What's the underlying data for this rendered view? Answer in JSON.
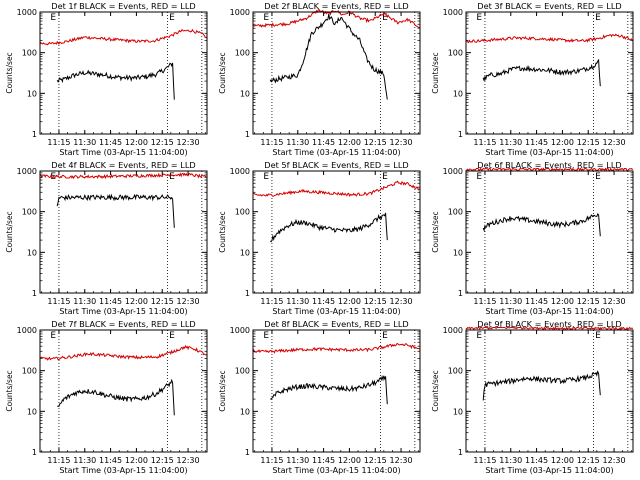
{
  "colors": {
    "events": "#000000",
    "lld": "#d40000",
    "axes": "#000000",
    "background": "#ffffff"
  },
  "shared": {
    "xlabel": "Start Time (03-Apr-15 11:04:00)",
    "ylabel": "Counts/sec",
    "x_tick_labels": [
      "11:15",
      "11:30",
      "11:45",
      "12:00",
      "12:15",
      "12:30"
    ],
    "y_tick_labels": [
      "1",
      "10",
      "100",
      "1000"
    ],
    "marker_labels": [
      "E",
      "E"
    ]
  },
  "chart_data": [
    {
      "type": "line",
      "title": "Det 1f BLACK = Events, RED = LLD",
      "xlim": [
        "11:04",
        "12:41"
      ],
      "ylim": [
        1,
        1000
      ],
      "yscale": "log",
      "marker_times": [
        "11:10",
        "12:19"
      ],
      "dotted_times": [
        "11:15",
        "12:18",
        "12:38"
      ],
      "series": [
        {
          "name": "Events",
          "color": "#000000",
          "start": "11:14",
          "end": "12:22",
          "x": [
            "11:14",
            "11:18",
            "11:24",
            "11:30",
            "11:36",
            "11:42",
            "11:48",
            "11:54",
            "12:00",
            "12:06",
            "12:12",
            "12:17",
            "12:21",
            "12:22"
          ],
          "y": [
            20,
            22,
            28,
            32,
            30,
            28,
            25,
            24,
            24,
            26,
            30,
            40,
            55,
            7
          ]
        },
        {
          "name": "LLD",
          "color": "#d40000",
          "start": "11:04",
          "end": "12:41",
          "x": [
            "11:04",
            "11:10",
            "11:20",
            "11:30",
            "11:40",
            "11:50",
            "12:00",
            "12:10",
            "12:20",
            "12:26",
            "12:32",
            "12:38",
            "12:41"
          ],
          "y": [
            170,
            165,
            190,
            240,
            220,
            205,
            190,
            195,
            260,
            340,
            350,
            290,
            230
          ]
        }
      ]
    },
    {
      "type": "line",
      "title": "Det 2f BLACK = Events, RED = LLD",
      "xlim": [
        "11:04",
        "12:41"
      ],
      "ylim": [
        1,
        1000
      ],
      "yscale": "log",
      "marker_times": [
        "11:10",
        "12:19"
      ],
      "dotted_times": [
        "11:15",
        "12:18",
        "12:38"
      ],
      "series": [
        {
          "name": "Events",
          "color": "#000000",
          "start": "11:14",
          "end": "12:22",
          "x": [
            "11:14",
            "11:18",
            "11:24",
            "11:30",
            "11:33",
            "11:38",
            "11:44",
            "11:48",
            "11:52",
            "11:55",
            "11:58",
            "12:02",
            "12:06",
            "12:10",
            "12:14",
            "12:20",
            "12:22"
          ],
          "y": [
            20,
            22,
            25,
            28,
            60,
            300,
            500,
            800,
            500,
            750,
            500,
            300,
            200,
            70,
            40,
            30,
            7
          ]
        },
        {
          "name": "LLD",
          "color": "#d40000",
          "start": "11:04",
          "end": "12:41",
          "x": [
            "11:04",
            "11:15",
            "11:25",
            "11:35",
            "11:42",
            "11:48",
            "11:52",
            "11:56",
            "12:00",
            "12:06",
            "12:12",
            "12:20",
            "12:28",
            "12:34",
            "12:41"
          ],
          "y": [
            450,
            480,
            520,
            700,
            1100,
            900,
            1100,
            850,
            1000,
            700,
            600,
            900,
            550,
            650,
            400
          ]
        }
      ]
    },
    {
      "type": "line",
      "title": "Det 3f BLACK = Events, RED = LLD",
      "xlim": [
        "11:04",
        "12:41"
      ],
      "ylim": [
        1,
        1000
      ],
      "yscale": "log",
      "marker_times": [
        "11:10",
        "12:19"
      ],
      "dotted_times": [
        "11:15",
        "12:18",
        "12:38"
      ],
      "series": [
        {
          "name": "Events",
          "color": "#000000",
          "start": "11:14",
          "end": "12:22",
          "x": [
            "11:14",
            "11:18",
            "11:24",
            "11:30",
            "11:36",
            "11:42",
            "11:48",
            "11:54",
            "12:00",
            "12:06",
            "12:12",
            "12:17",
            "12:21",
            "12:22"
          ],
          "y": [
            22,
            28,
            30,
            38,
            42,
            40,
            38,
            36,
            33,
            34,
            38,
            45,
            60,
            15
          ]
        },
        {
          "name": "LLD",
          "color": "#d40000",
          "start": "11:04",
          "end": "12:41",
          "x": [
            "11:04",
            "11:12",
            "11:22",
            "11:32",
            "11:42",
            "11:52",
            "12:02",
            "12:12",
            "12:20",
            "12:28",
            "12:34",
            "12:41"
          ],
          "y": [
            190,
            195,
            210,
            230,
            225,
            215,
            200,
            195,
            220,
            270,
            260,
            200
          ]
        }
      ]
    },
    {
      "type": "line",
      "title": "Det 4f BLACK = Events, RED = LLD",
      "xlim": [
        "11:04",
        "12:41"
      ],
      "ylim": [
        1,
        1000
      ],
      "yscale": "log",
      "marker_times": [
        "11:10",
        "12:19"
      ],
      "dotted_times": [
        "11:15",
        "12:18",
        "12:38"
      ],
      "series": [
        {
          "name": "Events",
          "color": "#000000",
          "start": "11:14",
          "end": "12:22",
          "x": [
            "11:14",
            "11:15",
            "11:30",
            "11:45",
            "12:00",
            "12:15",
            "12:21",
            "12:22"
          ],
          "y": [
            130,
            220,
            225,
            225,
            225,
            225,
            225,
            40
          ]
        },
        {
          "name": "LLD",
          "color": "#d40000",
          "start": "11:04",
          "end": "12:41",
          "x": [
            "11:04",
            "11:20",
            "11:40",
            "12:00",
            "12:20",
            "12:30",
            "12:41"
          ],
          "y": [
            750,
            720,
            730,
            760,
            800,
            820,
            700
          ]
        }
      ]
    },
    {
      "type": "line",
      "title": "Det 5f BLACK = Events, RED = LLD",
      "xlim": [
        "11:04",
        "12:41"
      ],
      "ylim": [
        1,
        1000
      ],
      "yscale": "log",
      "marker_times": [
        "11:10",
        "12:19"
      ],
      "dotted_times": [
        "11:15",
        "12:18",
        "12:38"
      ],
      "series": [
        {
          "name": "Events",
          "color": "#000000",
          "start": "11:14",
          "end": "12:22",
          "x": [
            "11:14",
            "11:18",
            "11:24",
            "11:30",
            "11:36",
            "11:42",
            "11:48",
            "11:54",
            "12:00",
            "12:06",
            "12:12",
            "12:17",
            "12:21",
            "12:22"
          ],
          "y": [
            18,
            30,
            45,
            55,
            52,
            42,
            38,
            35,
            34,
            38,
            50,
            70,
            85,
            20
          ]
        },
        {
          "name": "LLD",
          "color": "#d40000",
          "start": "11:04",
          "end": "12:41",
          "x": [
            "11:04",
            "11:12",
            "11:22",
            "11:32",
            "11:42",
            "11:52",
            "12:02",
            "12:12",
            "12:20",
            "12:28",
            "12:34",
            "12:41"
          ],
          "y": [
            260,
            250,
            280,
            320,
            300,
            280,
            260,
            280,
            380,
            520,
            480,
            350
          ]
        }
      ]
    },
    {
      "type": "line",
      "title": "Det 6f BLACK = Events, RED = LLD",
      "xlim": [
        "11:04",
        "12:41"
      ],
      "ylim": [
        1,
        1000
      ],
      "yscale": "log",
      "marker_times": [
        "11:10",
        "12:19"
      ],
      "dotted_times": [
        "11:15",
        "12:18",
        "12:38"
      ],
      "series": [
        {
          "name": "Events",
          "color": "#000000",
          "start": "11:14",
          "end": "12:22",
          "x": [
            "11:14",
            "11:18",
            "11:24",
            "11:30",
            "11:36",
            "11:42",
            "11:48",
            "11:54",
            "12:00",
            "12:06",
            "12:12",
            "12:17",
            "12:21",
            "12:22"
          ],
          "y": [
            38,
            50,
            60,
            70,
            65,
            60,
            55,
            50,
            48,
            52,
            60,
            75,
            90,
            25
          ]
        },
        {
          "name": "LLD",
          "color": "#d40000",
          "start": "11:04",
          "end": "12:41",
          "x": [
            "11:04",
            "11:20",
            "11:40",
            "12:00",
            "12:20",
            "12:41"
          ],
          "y": [
            1100,
            1100,
            1100,
            1100,
            1100,
            1100
          ]
        }
      ]
    },
    {
      "type": "line",
      "title": "Det 7f BLACK = Events, RED = LLD",
      "xlim": [
        "11:04",
        "12:41"
      ],
      "ylim": [
        1,
        1000
      ],
      "yscale": "log",
      "marker_times": [
        "11:10",
        "12:19"
      ],
      "dotted_times": [
        "11:15",
        "12:18",
        "12:38"
      ],
      "series": [
        {
          "name": "Events",
          "color": "#000000",
          "start": "11:14",
          "end": "12:22",
          "x": [
            "11:14",
            "11:18",
            "11:24",
            "11:30",
            "11:36",
            "11:42",
            "11:48",
            "11:54",
            "12:00",
            "12:06",
            "12:12",
            "12:17",
            "12:21",
            "12:22"
          ],
          "y": [
            12,
            20,
            28,
            32,
            30,
            25,
            22,
            20,
            20,
            22,
            28,
            40,
            55,
            8
          ]
        },
        {
          "name": "LLD",
          "color": "#d40000",
          "start": "11:04",
          "end": "12:41",
          "x": [
            "11:04",
            "11:12",
            "11:22",
            "11:32",
            "11:42",
            "11:52",
            "12:02",
            "12:12",
            "12:20",
            "12:28",
            "12:34",
            "12:41"
          ],
          "y": [
            200,
            195,
            220,
            260,
            240,
            220,
            210,
            220,
            280,
            380,
            340,
            240
          ]
        }
      ]
    },
    {
      "type": "line",
      "title": "Det 8f BLACK = Events, RED = LLD",
      "xlim": [
        "11:04",
        "12:41"
      ],
      "ylim": [
        1,
        1000
      ],
      "yscale": "log",
      "marker_times": [
        "11:10",
        "12:19"
      ],
      "dotted_times": [
        "11:15",
        "12:18",
        "12:38"
      ],
      "series": [
        {
          "name": "Events",
          "color": "#000000",
          "start": "11:14",
          "end": "12:22",
          "x": [
            "11:14",
            "11:18",
            "11:24",
            "11:30",
            "11:36",
            "11:42",
            "11:48",
            "11:54",
            "12:00",
            "12:06",
            "12:12",
            "12:17",
            "12:21",
            "12:22"
          ],
          "y": [
            18,
            28,
            35,
            40,
            42,
            40,
            38,
            36,
            35,
            38,
            45,
            55,
            70,
            15
          ]
        },
        {
          "name": "LLD",
          "color": "#d40000",
          "start": "11:04",
          "end": "12:41",
          "x": [
            "11:04",
            "11:12",
            "11:22",
            "11:32",
            "11:42",
            "11:52",
            "12:02",
            "12:12",
            "12:20",
            "12:28",
            "12:34",
            "12:41"
          ],
          "y": [
            300,
            290,
            310,
            330,
            340,
            330,
            320,
            330,
            380,
            450,
            420,
            340
          ]
        }
      ]
    },
    {
      "type": "line",
      "title": "Det 9f BLACK = Events, RED = LLD",
      "xlim": [
        "11:04",
        "12:41"
      ],
      "ylim": [
        1,
        1000
      ],
      "yscale": "log",
      "marker_times": [
        "11:10",
        "12:19"
      ],
      "dotted_times": [
        "11:15",
        "12:18",
        "12:38"
      ],
      "series": [
        {
          "name": "Events",
          "color": "#000000",
          "start": "11:14",
          "end": "12:22",
          "x": [
            "11:14",
            "11:15",
            "11:22",
            "11:30",
            "11:36",
            "11:42",
            "11:48",
            "11:54",
            "12:00",
            "12:06",
            "12:12",
            "12:17",
            "12:21",
            "12:22"
          ],
          "y": [
            20,
            45,
            50,
            55,
            62,
            65,
            60,
            58,
            56,
            60,
            65,
            75,
            85,
            25
          ]
        },
        {
          "name": "LLD",
          "color": "#d40000",
          "start": "11:04",
          "end": "12:41",
          "x": [
            "11:04",
            "11:20",
            "11:40",
            "12:00",
            "12:20",
            "12:41"
          ],
          "y": [
            1100,
            1150,
            1150,
            1100,
            1100,
            1100
          ]
        }
      ]
    }
  ]
}
